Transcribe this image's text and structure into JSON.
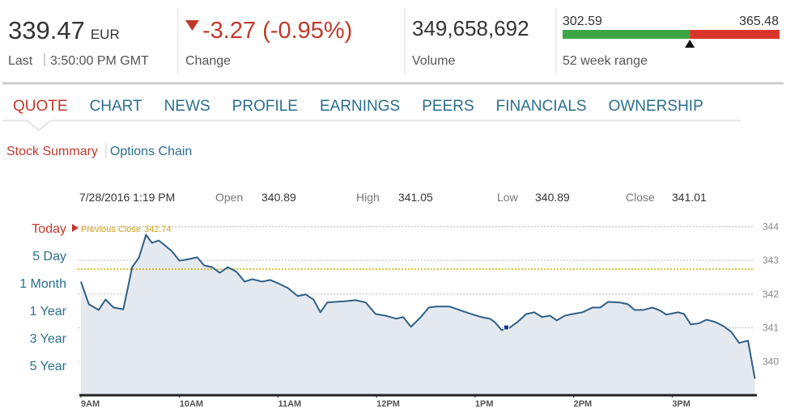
{
  "quote": {
    "price": 339.47,
    "currency": "EUR",
    "last_label": "Last",
    "time": "3:50:00 PM GMT",
    "change": "-3.27 (-0.95%)",
    "change_label": "Change",
    "volume": "349,658,692",
    "volume_label": "Volume",
    "range_low": 302.59,
    "range_high": 365.48,
    "range_label": "52 week range"
  },
  "tabs": [
    "QUOTE",
    "CHART",
    "NEWS",
    "PROFILE",
    "EARNINGS",
    "PEERS",
    "FINANCIALS",
    "OWNERSHIP"
  ],
  "subtabs": [
    "Stock Summary",
    "Options Chain"
  ],
  "periods": [
    "Today",
    "5 Day",
    "1 Month",
    "1 Year",
    "3 Year",
    "5 Year"
  ],
  "chart_data": {
    "type": "line",
    "color": "#2f5f85",
    "tooltip": {
      "date": "7/28/2016 1:19 PM",
      "fields": [
        {
          "label": "Open",
          "value": 340.89
        },
        {
          "label": "High",
          "value": 341.05
        },
        {
          "label": "Low",
          "value": 340.89
        },
        {
          "label": "Close",
          "value": 341.01
        }
      ]
    },
    "previous_close": {
      "label": "Previous Close",
      "value": 342.74
    },
    "x": [
      9.0,
      9.08,
      9.18,
      9.25,
      9.33,
      9.43,
      9.52,
      9.59,
      9.66,
      9.72,
      9.79,
      9.85,
      9.92,
      10.0,
      10.1,
      10.18,
      10.25,
      10.33,
      10.41,
      10.49,
      10.58,
      10.66,
      10.74,
      10.84,
      10.92,
      11.0,
      11.1,
      11.2,
      11.28,
      11.36,
      11.43,
      11.5,
      11.58,
      11.69,
      11.79,
      11.89,
      11.99,
      12.09,
      12.2,
      12.27,
      12.35,
      12.45,
      12.53,
      12.61,
      12.74,
      12.86,
      12.96,
      13.06,
      13.15,
      13.2,
      13.27,
      13.35,
      13.43,
      13.52,
      13.6,
      13.68,
      13.76,
      13.83,
      13.91,
      13.99,
      14.09,
      14.19,
      14.27,
      14.35,
      14.47,
      14.55,
      14.62,
      14.71,
      14.8,
      14.88,
      14.94,
      15.06,
      15.12,
      15.19,
      15.27,
      15.35,
      15.44,
      15.52,
      15.6,
      15.68,
      15.77,
      15.84
    ],
    "values": [
      342.37,
      341.7,
      341.53,
      341.84,
      341.6,
      341.55,
      342.8,
      343.09,
      343.76,
      343.52,
      343.59,
      343.45,
      343.28,
      342.99,
      343.04,
      343.09,
      342.85,
      342.8,
      342.63,
      342.8,
      342.66,
      342.37,
      342.44,
      342.37,
      342.42,
      342.32,
      342.18,
      341.94,
      341.99,
      341.84,
      341.46,
      341.75,
      341.77,
      341.79,
      341.82,
      341.75,
      341.41,
      341.36,
      341.27,
      341.32,
      341.03,
      341.32,
      341.6,
      341.63,
      341.63,
      341.51,
      341.41,
      341.32,
      341.27,
      341.17,
      340.93,
      341.0,
      341.17,
      341.41,
      341.46,
      341.32,
      341.36,
      341.22,
      341.36,
      341.41,
      341.46,
      341.6,
      341.6,
      341.77,
      341.75,
      341.7,
      341.53,
      341.53,
      341.6,
      341.51,
      341.39,
      341.46,
      341.41,
      341.1,
      341.13,
      341.24,
      341.17,
      341.05,
      340.88,
      340.55,
      340.62,
      339.49
    ],
    "xlim": [
      9,
      15.86
    ],
    "xticks": [
      {
        "value": 9,
        "label": "9AM"
      },
      {
        "value": 10,
        "label": "10AM"
      },
      {
        "value": 11,
        "label": "11AM"
      },
      {
        "value": 12,
        "label": "12PM"
      },
      {
        "value": 13,
        "label": "1PM"
      },
      {
        "value": 14,
        "label": "2PM"
      },
      {
        "value": 15,
        "label": "3PM"
      }
    ],
    "ylim": [
      339,
      344.25
    ],
    "yticks": [
      340,
      341,
      342,
      343,
      344
    ],
    "grid": true
  }
}
